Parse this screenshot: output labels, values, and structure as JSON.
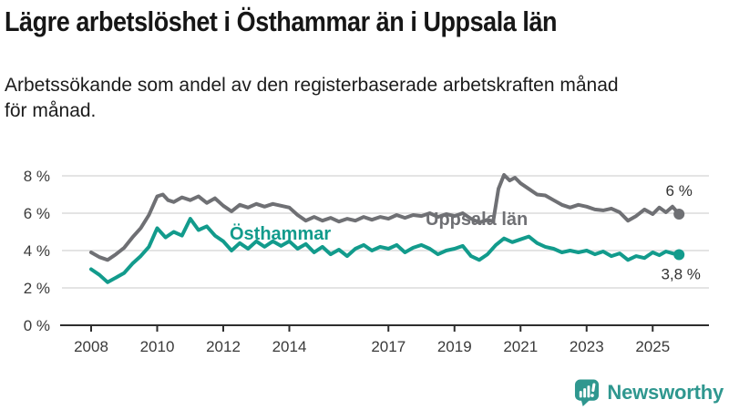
{
  "header": {
    "title": "Lägre arbetslöshet i Östhammar än i Uppsala län",
    "subtitle_lines": [
      "Arbetssökande som andel av den registerbaserade arbetskraften månad",
      "för månad."
    ]
  },
  "colors": {
    "osthammar": "#129b8c",
    "uppsala": "#6f7074",
    "brand": "#2f978f",
    "axis_text": "#3a3a3a",
    "grid": "#dcdcdc",
    "axis_line": "#2e2e2e",
    "annotation_text": "#333333"
  },
  "chart_data": {
    "type": "line",
    "title": "Lägre arbetslöshet i Östhammar än i Uppsala län",
    "xlabel": "",
    "ylabel": "",
    "grid": true,
    "legend_position": "inline-labels",
    "xlim": [
      2007.9,
      2026.6
    ],
    "ylim": [
      0,
      8.8
    ],
    "x_ticks": [
      {
        "v": 2008,
        "label": "2008"
      },
      {
        "v": 2010,
        "label": "2010"
      },
      {
        "v": 2012,
        "label": "2012"
      },
      {
        "v": 2014,
        "label": "2014"
      },
      {
        "v": 2017,
        "label": "2017"
      },
      {
        "v": 2019,
        "label": "2019"
      },
      {
        "v": 2021,
        "label": "2021"
      },
      {
        "v": 2023,
        "label": "2023"
      },
      {
        "v": 2025,
        "label": "2025"
      }
    ],
    "y_ticks": [
      {
        "v": 0,
        "label": "0 %"
      },
      {
        "v": 2,
        "label": "2 %"
      },
      {
        "v": 4,
        "label": "4 %"
      },
      {
        "v": 6,
        "label": "6 %"
      },
      {
        "v": 8,
        "label": "8 %"
      }
    ],
    "series": [
      {
        "name": "Uppsala län",
        "color": "#6f7074",
        "end_label": "6 %",
        "points": [
          [
            2008.0,
            3.9
          ],
          [
            2008.25,
            3.65
          ],
          [
            2008.5,
            3.5
          ],
          [
            2008.75,
            3.8
          ],
          [
            2009.0,
            4.15
          ],
          [
            2009.25,
            4.7
          ],
          [
            2009.5,
            5.2
          ],
          [
            2009.75,
            5.9
          ],
          [
            2010.0,
            6.9
          ],
          [
            2010.17,
            7.0
          ],
          [
            2010.33,
            6.7
          ],
          [
            2010.5,
            6.6
          ],
          [
            2010.75,
            6.85
          ],
          [
            2011.0,
            6.7
          ],
          [
            2011.25,
            6.9
          ],
          [
            2011.5,
            6.55
          ],
          [
            2011.75,
            6.8
          ],
          [
            2012.0,
            6.4
          ],
          [
            2012.25,
            6.1
          ],
          [
            2012.5,
            6.45
          ],
          [
            2012.75,
            6.3
          ],
          [
            2013.0,
            6.5
          ],
          [
            2013.25,
            6.35
          ],
          [
            2013.5,
            6.5
          ],
          [
            2013.75,
            6.4
          ],
          [
            2014.0,
            6.3
          ],
          [
            2014.25,
            5.9
          ],
          [
            2014.5,
            5.6
          ],
          [
            2014.75,
            5.8
          ],
          [
            2015.0,
            5.6
          ],
          [
            2015.25,
            5.75
          ],
          [
            2015.5,
            5.55
          ],
          [
            2015.75,
            5.7
          ],
          [
            2016.0,
            5.6
          ],
          [
            2016.25,
            5.8
          ],
          [
            2016.5,
            5.65
          ],
          [
            2016.75,
            5.8
          ],
          [
            2017.0,
            5.7
          ],
          [
            2017.25,
            5.9
          ],
          [
            2017.5,
            5.75
          ],
          [
            2017.75,
            5.9
          ],
          [
            2018.0,
            5.85
          ],
          [
            2018.25,
            6.0
          ],
          [
            2018.5,
            5.8
          ],
          [
            2018.75,
            5.95
          ],
          [
            2019.0,
            5.85
          ],
          [
            2019.25,
            6.0
          ],
          [
            2019.5,
            5.7
          ],
          [
            2019.75,
            5.5
          ],
          [
            2020.0,
            5.65
          ],
          [
            2020.17,
            5.55
          ],
          [
            2020.33,
            7.3
          ],
          [
            2020.5,
            8.05
          ],
          [
            2020.67,
            7.75
          ],
          [
            2020.83,
            7.9
          ],
          [
            2021.0,
            7.6
          ],
          [
            2021.25,
            7.3
          ],
          [
            2021.5,
            7.0
          ],
          [
            2021.75,
            6.95
          ],
          [
            2022.0,
            6.7
          ],
          [
            2022.25,
            6.45
          ],
          [
            2022.5,
            6.3
          ],
          [
            2022.75,
            6.45
          ],
          [
            2023.0,
            6.35
          ],
          [
            2023.25,
            6.2
          ],
          [
            2023.5,
            6.15
          ],
          [
            2023.75,
            6.25
          ],
          [
            2024.0,
            6.05
          ],
          [
            2024.25,
            5.6
          ],
          [
            2024.5,
            5.85
          ],
          [
            2024.75,
            6.2
          ],
          [
            2025.0,
            5.95
          ],
          [
            2025.2,
            6.3
          ],
          [
            2025.4,
            6.05
          ],
          [
            2025.6,
            6.35
          ],
          [
            2025.8,
            5.95
          ]
        ]
      },
      {
        "name": "Östhammar",
        "color": "#129b8c",
        "end_label": "3,8 %",
        "points": [
          [
            2008.0,
            3.0
          ],
          [
            2008.25,
            2.7
          ],
          [
            2008.5,
            2.3
          ],
          [
            2008.75,
            2.55
          ],
          [
            2009.0,
            2.8
          ],
          [
            2009.25,
            3.3
          ],
          [
            2009.5,
            3.7
          ],
          [
            2009.75,
            4.2
          ],
          [
            2010.0,
            5.2
          ],
          [
            2010.25,
            4.7
          ],
          [
            2010.5,
            5.0
          ],
          [
            2010.75,
            4.8
          ],
          [
            2011.0,
            5.7
          ],
          [
            2011.25,
            5.1
          ],
          [
            2011.5,
            5.3
          ],
          [
            2011.75,
            4.8
          ],
          [
            2012.0,
            4.5
          ],
          [
            2012.25,
            4.0
          ],
          [
            2012.5,
            4.4
          ],
          [
            2012.75,
            4.1
          ],
          [
            2013.0,
            4.5
          ],
          [
            2013.25,
            4.2
          ],
          [
            2013.5,
            4.5
          ],
          [
            2013.75,
            4.25
          ],
          [
            2014.0,
            4.5
          ],
          [
            2014.25,
            4.1
          ],
          [
            2014.5,
            4.35
          ],
          [
            2014.75,
            3.9
          ],
          [
            2015.0,
            4.2
          ],
          [
            2015.25,
            3.8
          ],
          [
            2015.5,
            4.05
          ],
          [
            2015.75,
            3.7
          ],
          [
            2016.0,
            4.1
          ],
          [
            2016.25,
            4.3
          ],
          [
            2016.5,
            4.0
          ],
          [
            2016.75,
            4.2
          ],
          [
            2017.0,
            4.1
          ],
          [
            2017.25,
            4.3
          ],
          [
            2017.5,
            3.9
          ],
          [
            2017.75,
            4.15
          ],
          [
            2018.0,
            4.3
          ],
          [
            2018.25,
            4.1
          ],
          [
            2018.5,
            3.8
          ],
          [
            2018.75,
            4.0
          ],
          [
            2019.0,
            4.1
          ],
          [
            2019.25,
            4.25
          ],
          [
            2019.5,
            3.7
          ],
          [
            2019.75,
            3.5
          ],
          [
            2020.0,
            3.8
          ],
          [
            2020.25,
            4.3
          ],
          [
            2020.5,
            4.65
          ],
          [
            2020.75,
            4.45
          ],
          [
            2021.0,
            4.6
          ],
          [
            2021.25,
            4.75
          ],
          [
            2021.5,
            4.4
          ],
          [
            2021.75,
            4.2
          ],
          [
            2022.0,
            4.1
          ],
          [
            2022.25,
            3.9
          ],
          [
            2022.5,
            4.0
          ],
          [
            2022.75,
            3.9
          ],
          [
            2023.0,
            4.0
          ],
          [
            2023.25,
            3.8
          ],
          [
            2023.5,
            3.95
          ],
          [
            2023.75,
            3.7
          ],
          [
            2024.0,
            3.85
          ],
          [
            2024.25,
            3.5
          ],
          [
            2024.5,
            3.7
          ],
          [
            2024.75,
            3.6
          ],
          [
            2025.0,
            3.9
          ],
          [
            2025.2,
            3.75
          ],
          [
            2025.4,
            3.95
          ],
          [
            2025.6,
            3.85
          ],
          [
            2025.8,
            3.78
          ]
        ]
      }
    ]
  },
  "footer": {
    "brand": "Newsworthy"
  }
}
